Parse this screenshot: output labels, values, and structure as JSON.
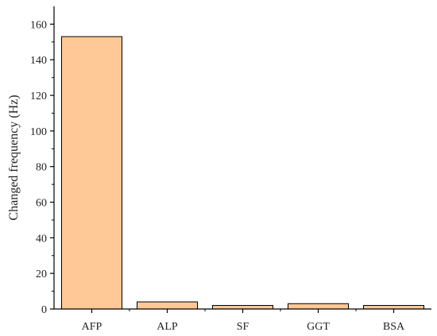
{
  "chart_data": {
    "type": "bar",
    "title": "",
    "xlabel": "",
    "ylabel": "Changed frequency (Hz)",
    "categories": [
      "AFP",
      "ALP",
      "SF",
      "GGT",
      "BSA"
    ],
    "values": [
      153,
      4,
      2,
      3,
      2
    ],
    "ylim": [
      0,
      170
    ],
    "yticks": [
      0,
      20,
      40,
      60,
      80,
      100,
      120,
      140,
      160
    ],
    "grid": false,
    "legend": "none",
    "colors": {
      "bar_fill": "#ffc896",
      "bar_stroke": "#000000",
      "axis": "#000000"
    }
  }
}
